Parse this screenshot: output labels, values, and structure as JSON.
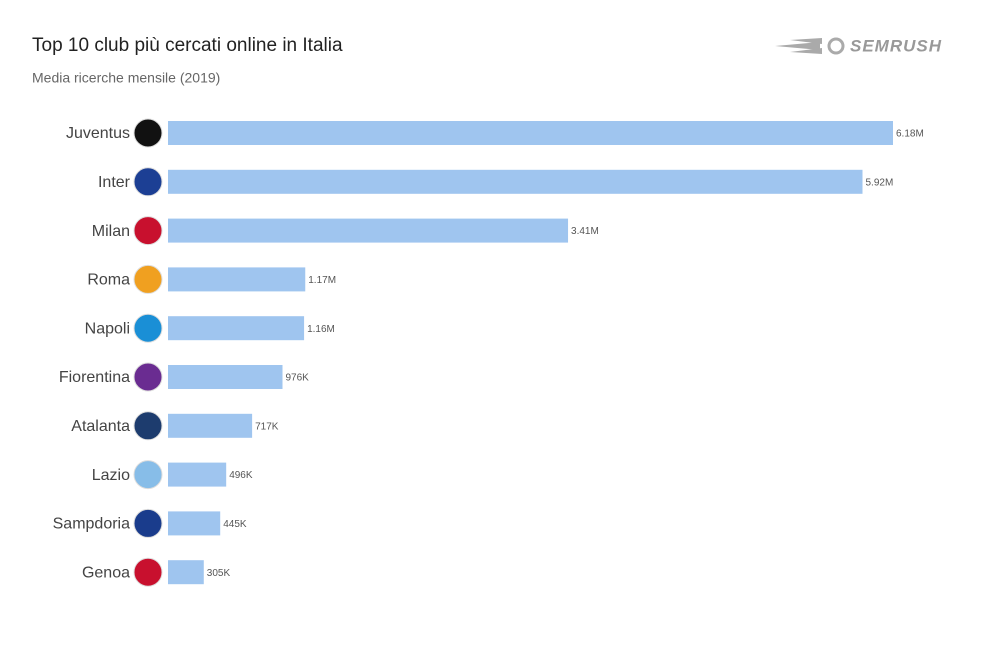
{
  "chart_data": {
    "type": "bar",
    "orientation": "horizontal",
    "title": "Top 10 club più cercati online in Italia",
    "subtitle": "Media ricerche mensile (2019)",
    "brand": "SEMRUSH",
    "categories": [
      "Juventus",
      "Inter",
      "Milan",
      "Roma",
      "Napoli",
      "Fiorentina",
      "Atalanta",
      "Lazio",
      "Sampdoria",
      "Genoa"
    ],
    "values": [
      6180000,
      5920000,
      3410000,
      1170000,
      1160000,
      976000,
      717000,
      496000,
      445000,
      305000
    ],
    "value_labels": [
      "6.18M",
      "5.92M",
      "3.41M",
      "1.17M",
      "1.16M",
      "976K",
      "717K",
      "496K",
      "445K",
      "305K"
    ],
    "color": "#9fc5ef"
  }
}
